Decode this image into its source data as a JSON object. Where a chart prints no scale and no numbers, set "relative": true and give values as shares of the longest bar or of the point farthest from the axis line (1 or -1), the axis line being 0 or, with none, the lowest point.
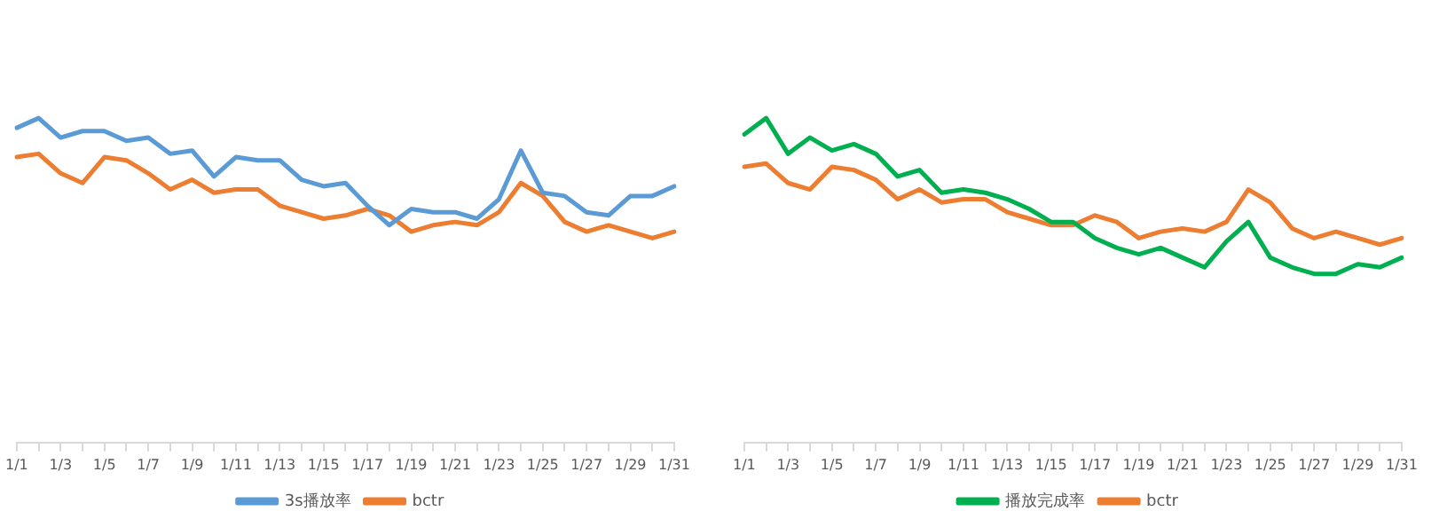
{
  "chart_data": [
    {
      "type": "line",
      "relative": true,
      "legend": "bottom",
      "grid": false,
      "marker": "none",
      "categories": [
        "1/1",
        null,
        "1/3",
        null,
        "1/5",
        null,
        "1/7",
        null,
        "1/9",
        null,
        "1/11",
        null,
        "1/13",
        null,
        "1/15",
        null,
        "1/17",
        null,
        "1/19",
        null,
        "1/21",
        null,
        "1/23",
        null,
        "1/25",
        null,
        "1/27",
        null,
        "1/29",
        null,
        "1/31"
      ],
      "series": [
        {
          "name": "3s播放率",
          "color": "#5b9bd5",
          "values": [
            0.97,
            1,
            0.94,
            0.96,
            0.96,
            0.93,
            0.94,
            0.89,
            0.9,
            0.82,
            0.88,
            0.87,
            0.87,
            0.81,
            0.79,
            0.8,
            0.73,
            0.67,
            0.72,
            0.71,
            0.71,
            0.69,
            0.75,
            0.9,
            0.77,
            0.76,
            0.71,
            0.7,
            0.76,
            0.76,
            0.79
          ]
        },
        {
          "name": "bctr",
          "color": "#ed7d31",
          "values": [
            0.88,
            0.89,
            0.83,
            0.8,
            0.88,
            0.87,
            0.83,
            0.78,
            0.81,
            0.77,
            0.78,
            0.78,
            0.73,
            0.71,
            0.69,
            0.7,
            0.72,
            0.7,
            0.65,
            0.67,
            0.68,
            0.67,
            0.71,
            0.8,
            0.76,
            0.68,
            0.65,
            0.67,
            0.65,
            0.63,
            0.65
          ]
        }
      ]
    },
    {
      "type": "line",
      "relative": true,
      "legend": "bottom",
      "grid": false,
      "marker": "none",
      "categories": [
        "1/1",
        null,
        "1/3",
        null,
        "1/5",
        null,
        "1/7",
        null,
        "1/9",
        null,
        "1/11",
        null,
        "1/13",
        null,
        "1/15",
        null,
        "1/17",
        null,
        "1/19",
        null,
        "1/21",
        null,
        "1/23",
        null,
        "1/25",
        null,
        "1/27",
        null,
        "1/29",
        null,
        "1/31"
      ],
      "series": [
        {
          "name": "播放完成率",
          "color": "#00b050",
          "values": [
            0.95,
            1,
            0.89,
            0.94,
            0.9,
            0.92,
            0.89,
            0.82,
            0.84,
            0.77,
            0.78,
            0.77,
            0.75,
            0.72,
            0.68,
            0.68,
            0.63,
            0.6,
            0.58,
            0.6,
            0.57,
            0.54,
            0.62,
            0.68,
            0.57,
            0.54,
            0.52,
            0.52,
            0.55,
            0.54,
            0.57
          ]
        },
        {
          "name": "bctr",
          "color": "#ed7d31",
          "values": [
            0.85,
            0.86,
            0.8,
            0.78,
            0.85,
            0.84,
            0.81,
            0.75,
            0.78,
            0.74,
            0.75,
            0.75,
            0.71,
            0.69,
            0.67,
            0.67,
            0.7,
            0.68,
            0.63,
            0.65,
            0.66,
            0.65,
            0.68,
            0.78,
            0.74,
            0.66,
            0.63,
            0.65,
            0.63,
            0.61,
            0.63
          ]
        }
      ]
    }
  ]
}
